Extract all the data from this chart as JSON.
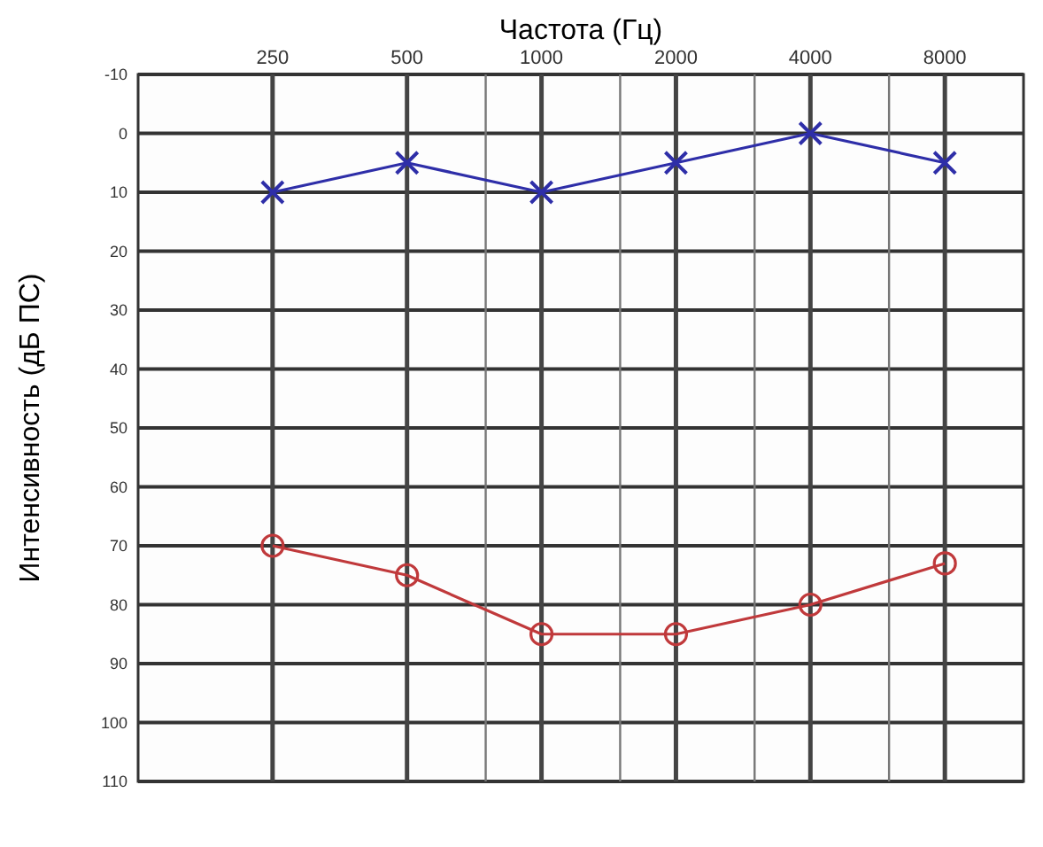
{
  "chart_data": {
    "type": "line",
    "xlabel": "Частота (Гц)",
    "ylabel": "Интенсивность (дБ ПС)",
    "log": "x",
    "x": [
      250,
      500,
      1000,
      2000,
      4000,
      8000
    ],
    "xlim": [
      125,
      12000
    ],
    "xticks": [
      250,
      500,
      {
        "value": 750,
        "label": null
      },
      1000,
      {
        "value": 1500,
        "label": null
      },
      2000,
      {
        "value": 3000,
        "label": null
      },
      4000,
      {
        "value": 6000,
        "label": null
      },
      8000
    ],
    "ylim": [
      110,
      -10
    ],
    "yticks": [
      -10,
      0,
      10,
      20,
      30,
      40,
      50,
      60,
      70,
      80,
      90,
      100,
      110
    ],
    "grid": true,
    "line_style": "solid",
    "series": [
      {
        "color": "#2e2ea8",
        "marker": "cross",
        "values": [
          10,
          5,
          10,
          5,
          0,
          5
        ]
      },
      {
        "color": "#c0393b",
        "marker": "circle",
        "values": [
          70,
          75,
          85,
          85,
          80,
          73
        ]
      }
    ]
  }
}
